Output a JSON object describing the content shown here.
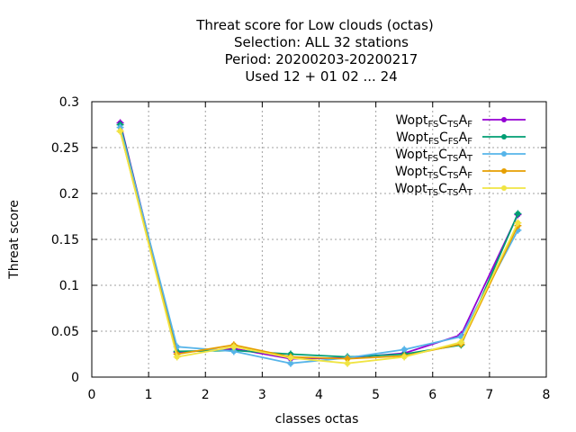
{
  "chart_data": {
    "type": "line",
    "title_lines": [
      "Threat score  for Low clouds (octas)",
      "Selection: ALL     32 stations",
      "Period: 20200203-20200217",
      "Used  12 + 01 02 ... 24"
    ],
    "xlabel": "classes octas",
    "ylabel": "Threat score",
    "xlim": [
      0,
      8
    ],
    "ylim": [
      0,
      0.3
    ],
    "xticks": [
      0,
      1,
      2,
      3,
      4,
      5,
      6,
      7,
      8
    ],
    "yticks": [
      0,
      0.05,
      0.1,
      0.15,
      0.2,
      0.25,
      0.3
    ],
    "ytick_labels": [
      "0",
      "0.05",
      "0.1",
      "0.15",
      "0.2",
      "0.25",
      "0.3"
    ],
    "grid": true,
    "legend_position": "top-right",
    "x": [
      0.5,
      1.5,
      2.5,
      3.5,
      4.5,
      5.5,
      6.5,
      7.5
    ],
    "series": [
      {
        "name_parts": [
          [
            "Wopt",
            ""
          ],
          [
            "FS",
            "sub"
          ],
          [
            "C",
            ""
          ],
          [
            "TS",
            "sub"
          ],
          [
            "A",
            ""
          ],
          [
            "F",
            "sub"
          ]
        ],
        "color": "#9400d3",
        "values": [
          0.277,
          0.027,
          0.031,
          0.02,
          0.021,
          0.026,
          0.046,
          0.177
        ]
      },
      {
        "name_parts": [
          [
            "Wopt",
            ""
          ],
          [
            "FS",
            "sub"
          ],
          [
            "C",
            ""
          ],
          [
            "FS",
            "sub"
          ],
          [
            "A",
            ""
          ],
          [
            "F",
            "sub"
          ]
        ],
        "color": "#009e73",
        "values": [
          0.275,
          0.028,
          0.029,
          0.025,
          0.022,
          0.025,
          0.035,
          0.178
        ]
      },
      {
        "name_parts": [
          [
            "Wopt",
            ""
          ],
          [
            "FS",
            "sub"
          ],
          [
            "C",
            ""
          ],
          [
            "TS",
            "sub"
          ],
          [
            "A",
            ""
          ],
          [
            "T",
            "sub"
          ]
        ],
        "color": "#56b4e9",
        "values": [
          0.272,
          0.033,
          0.028,
          0.015,
          0.021,
          0.03,
          0.044,
          0.16
        ]
      },
      {
        "name_parts": [
          [
            "Wopt",
            ""
          ],
          [
            "TS",
            "sub"
          ],
          [
            "C",
            ""
          ],
          [
            "TS",
            "sub"
          ],
          [
            "A",
            ""
          ],
          [
            "F",
            "sub"
          ]
        ],
        "color": "#e69f00",
        "values": [
          0.268,
          0.025,
          0.035,
          0.022,
          0.02,
          0.023,
          0.036,
          0.165
        ]
      },
      {
        "name_parts": [
          [
            "Wopt",
            ""
          ],
          [
            "TS",
            "sub"
          ],
          [
            "C",
            ""
          ],
          [
            "TS",
            "sub"
          ],
          [
            "A",
            ""
          ],
          [
            "T",
            "sub"
          ]
        ],
        "color": "#f0e442",
        "values": [
          0.268,
          0.022,
          0.033,
          0.021,
          0.015,
          0.022,
          0.038,
          0.168
        ]
      }
    ]
  }
}
